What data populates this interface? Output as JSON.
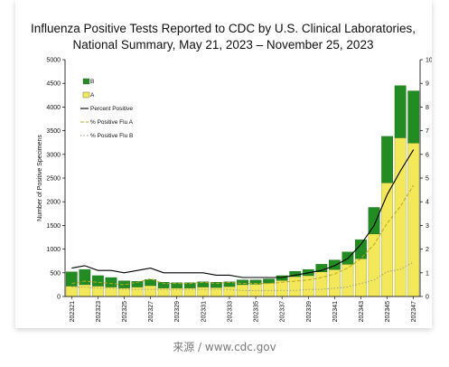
{
  "caption": "来源 / www.cdc.gov",
  "chart_data": {
    "type": "bar",
    "title": "Influenza Positive Tests Reported to CDC by U.S. Clinical Laboratories,",
    "subtitle": "National Summary, May 21, 2023 – November 25, 2023",
    "ylabel": "Number of Positive Specimens",
    "y2label": "Percent Positive",
    "xlabel": "",
    "ylim": [
      0,
      5000
    ],
    "y2lim": [
      0,
      10
    ],
    "yticks": [
      0,
      500,
      1000,
      1500,
      2000,
      2500,
      3000,
      3500,
      4000,
      4500,
      5000
    ],
    "y2ticks": [
      0,
      1,
      2,
      3,
      4,
      5,
      6,
      7,
      8,
      9,
      10
    ],
    "stacked": true,
    "colors": {
      "A": "#f2e85a",
      "B": "#228b22",
      "percent": "#000000",
      "fluA": "#b8a820",
      "fluB": "#a0a080"
    },
    "categories": [
      "202321",
      "202322",
      "202323",
      "202324",
      "202325",
      "202326",
      "202327",
      "202328",
      "202329",
      "202330",
      "202331",
      "202332",
      "202333",
      "202334",
      "202335",
      "202336",
      "202337",
      "202338",
      "202339",
      "202340",
      "202341",
      "202342",
      "202343",
      "202344",
      "202345",
      "202346",
      "202347"
    ],
    "tick_labels": [
      "202321",
      "202323",
      "202325",
      "202327",
      "202329",
      "202331",
      "202333",
      "202335",
      "202337",
      "202339",
      "202341",
      "202343",
      "202345",
      "202347"
    ],
    "series": [
      {
        "name": "B",
        "values": [
          300,
          320,
          220,
          200,
          150,
          120,
          130,
          120,
          110,
          110,
          110,
          110,
          100,
          100,
          90,
          90,
          100,
          110,
          130,
          160,
          200,
          260,
          400,
          560,
          980,
          1100,
          1100
        ]
      },
      {
        "name": "A",
        "values": [
          220,
          250,
          220,
          200,
          180,
          200,
          230,
          180,
          180,
          180,
          200,
          190,
          210,
          250,
          260,
          280,
          340,
          420,
          440,
          520,
          570,
          680,
          800,
          1320,
          2400,
          3350,
          3240
        ]
      }
    ],
    "lines": [
      {
        "name": "Percent Positive",
        "values": [
          1.2,
          1.3,
          1.1,
          1.1,
          1.0,
          1.1,
          1.2,
          1.0,
          1.0,
          1.0,
          1.0,
          0.9,
          0.9,
          0.8,
          0.8,
          0.8,
          0.8,
          0.9,
          1.0,
          1.1,
          1.3,
          1.6,
          2.2,
          3.0,
          4.3,
          5.3,
          6.2
        ]
      },
      {
        "name": "% Positive Flu A",
        "values": [
          0.55,
          0.65,
          0.6,
          0.55,
          0.5,
          0.6,
          0.75,
          0.55,
          0.55,
          0.55,
          0.6,
          0.55,
          0.6,
          0.55,
          0.55,
          0.55,
          0.6,
          0.65,
          0.7,
          0.8,
          0.95,
          1.2,
          1.6,
          2.2,
          3.1,
          3.8,
          4.7
        ]
      },
      {
        "name": "% Positive Flu B",
        "values": [
          0.4,
          0.4,
          0.35,
          0.35,
          0.3,
          0.3,
          0.3,
          0.3,
          0.3,
          0.3,
          0.3,
          0.3,
          0.3,
          0.25,
          0.25,
          0.25,
          0.25,
          0.25,
          0.3,
          0.3,
          0.35,
          0.4,
          0.55,
          0.7,
          1.05,
          1.15,
          1.45
        ]
      }
    ],
    "legend": [
      {
        "name": "B",
        "kind": "bar"
      },
      {
        "name": "A",
        "kind": "bar"
      },
      {
        "name": "Percent Positive",
        "kind": "line"
      },
      {
        "name": "% Positive Flu A",
        "kind": "dashline"
      },
      {
        "name": "% Positive Flu B",
        "kind": "dotline"
      }
    ],
    "legend_placement": "top-left",
    "grid": false,
    "background": "#ffffff"
  }
}
